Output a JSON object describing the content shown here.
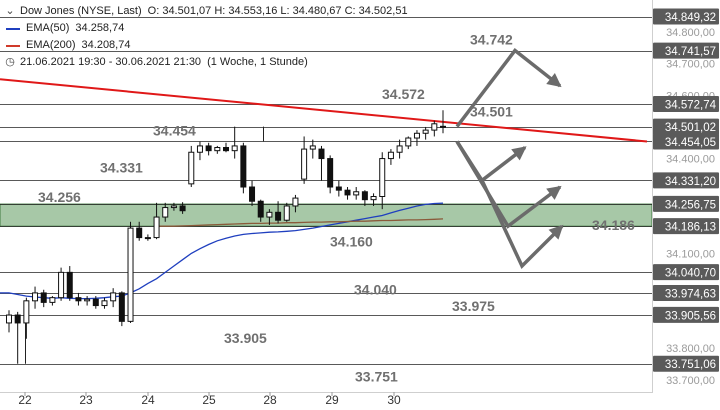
{
  "header": {
    "instrument": "Dow Jones (NYSE, Last)",
    "ohlc": "O: 34.501,07  H: 34.553,16  L: 34.480,67  C: 34.502,51",
    "ema50_label": "EMA(50)",
    "ema50_value": "34.258,74",
    "ema200_label": "EMA(200)",
    "ema200_value": "34.208,74",
    "range_text": "21.06.2021 19:30 - 30.06.2021 21:30",
    "interval_text": "(1 Woche, 1 Stunde)"
  },
  "colors": {
    "ema50": "#1f3fbf",
    "ema200": "#d03a2a",
    "trendline": "#e01818",
    "zone": "#5f9a5f",
    "level_line": "#222222",
    "arrow": "#6b6b6b",
    "label_box": "#5a5a5a",
    "up_candle": "#ffffff",
    "down_candle": "#111111"
  },
  "chart_data": {
    "type": "candlestick",
    "x_tick_labels": [
      "22",
      "23",
      "24",
      "25",
      "28",
      "29",
      "30"
    ],
    "y_tick_labels": [
      "33.700,00",
      "33.800,00",
      "34.100,00",
      "34.400,00",
      "34.600,00",
      "34.700,00",
      "34.800,00"
    ],
    "ylim": [
      33690,
      34870
    ],
    "level_lines": [
      {
        "value": 34849.32,
        "label": "34.849,32"
      },
      {
        "value": 34741.57,
        "label": "34.741,57"
      },
      {
        "value": 34572.74,
        "label": "34.572,74"
      },
      {
        "value": 34501.02,
        "label": "34.501,02"
      },
      {
        "value": 34454.05,
        "label": "34.454,05"
      },
      {
        "value": 34331.2,
        "label": "34.331,20"
      },
      {
        "value": 34256.75,
        "label": "34.256,75"
      },
      {
        "value": 34186.13,
        "label": "34.186,13"
      },
      {
        "value": 34040.7,
        "label": "34.040,70"
      },
      {
        "value": 33974.63,
        "label": "33.974,63"
      },
      {
        "value": 33905.56,
        "label": "33.905,56"
      },
      {
        "value": 33751.06,
        "label": "33.751,06"
      }
    ],
    "annotations": [
      {
        "text": "34.742",
        "value": 34742
      },
      {
        "text": "34.572",
        "value": 34572
      },
      {
        "text": "34.501",
        "value": 34501
      },
      {
        "text": "34.454",
        "value": 34454
      },
      {
        "text": "34.331",
        "value": 34331
      },
      {
        "text": "34.256",
        "value": 34256
      },
      {
        "text": "34.186",
        "value": 34186
      },
      {
        "text": "34.160",
        "value": 34160
      },
      {
        "text": "34.040",
        "value": 34040
      },
      {
        "text": "33.975",
        "value": 33975
      },
      {
        "text": "33.905",
        "value": 33905
      },
      {
        "text": "33.751",
        "value": 33751
      }
    ],
    "support_zone": {
      "from": 34186,
      "to": 34256
    },
    "trendline": {
      "start": 34651,
      "end": 34454
    },
    "scenario_arrows": [
      {
        "name": "breakout-to-34742",
        "points": [
          [
            0,
            34501
          ],
          [
            1,
            34742
          ],
          [
            2,
            34630
          ]
        ]
      },
      {
        "name": "pullback-to-34331",
        "points": [
          [
            0,
            34454
          ],
          [
            1,
            34331
          ],
          [
            2,
            34435
          ]
        ]
      },
      {
        "name": "pullback-to-zone",
        "points": [
          [
            0,
            34454
          ],
          [
            1,
            34186
          ],
          [
            2,
            34310
          ]
        ]
      },
      {
        "name": "drop-to-34040",
        "points": [
          [
            0,
            34331
          ],
          [
            1,
            34060
          ],
          [
            2,
            34186
          ]
        ]
      }
    ],
    "candles": [
      {
        "o": 33880,
        "h": 33920,
        "l": 33850,
        "c": 33905
      },
      {
        "o": 33905,
        "h": 33915,
        "l": 33751,
        "c": 33880
      },
      {
        "o": 33880,
        "h": 33960,
        "l": 33830,
        "c": 33950
      },
      {
        "o": 33950,
        "h": 33995,
        "l": 33925,
        "c": 33975
      },
      {
        "o": 33975,
        "h": 33985,
        "l": 33930,
        "c": 33945
      },
      {
        "o": 33945,
        "h": 33965,
        "l": 33935,
        "c": 33960
      },
      {
        "o": 33960,
        "h": 34055,
        "l": 33950,
        "c": 34040
      },
      {
        "o": 34040,
        "h": 34060,
        "l": 33950,
        "c": 33960
      },
      {
        "o": 33960,
        "h": 33975,
        "l": 33935,
        "c": 33950
      },
      {
        "o": 33950,
        "h": 33965,
        "l": 33935,
        "c": 33955
      },
      {
        "o": 33955,
        "h": 33965,
        "l": 33925,
        "c": 33935
      },
      {
        "o": 33935,
        "h": 33960,
        "l": 33925,
        "c": 33950
      },
      {
        "o": 33950,
        "h": 33990,
        "l": 33930,
        "c": 33975
      },
      {
        "o": 33975,
        "h": 33980,
        "l": 33870,
        "c": 33885
      },
      {
        "o": 33885,
        "h": 34200,
        "l": 33880,
        "c": 34180
      },
      {
        "o": 34180,
        "h": 34200,
        "l": 34140,
        "c": 34150
      },
      {
        "o": 34150,
        "h": 34160,
        "l": 34140,
        "c": 34150
      },
      {
        "o": 34150,
        "h": 34260,
        "l": 34145,
        "c": 34215
      },
      {
        "o": 34215,
        "h": 34260,
        "l": 34200,
        "c": 34245
      },
      {
        "o": 34245,
        "h": 34260,
        "l": 34235,
        "c": 34250
      },
      {
        "o": 34250,
        "h": 34262,
        "l": 34225,
        "c": 34235
      },
      {
        "o": 34320,
        "h": 34440,
        "l": 34310,
        "c": 34420
      },
      {
        "o": 34420,
        "h": 34454,
        "l": 34395,
        "c": 34440
      },
      {
        "o": 34440,
        "h": 34450,
        "l": 34410,
        "c": 34425
      },
      {
        "o": 34425,
        "h": 34440,
        "l": 34415,
        "c": 34435
      },
      {
        "o": 34435,
        "h": 34450,
        "l": 34420,
        "c": 34425
      },
      {
        "o": 34425,
        "h": 34501,
        "l": 34400,
        "c": 34440
      },
      {
        "o": 34440,
        "h": 34450,
        "l": 34290,
        "c": 34310
      },
      {
        "o": 34310,
        "h": 34330,
        "l": 34250,
        "c": 34265
      },
      {
        "o": 34265,
        "h": 34270,
        "l": 34200,
        "c": 34215
      },
      {
        "o": 34215,
        "h": 34240,
        "l": 34190,
        "c": 34230
      },
      {
        "o": 34230,
        "h": 34265,
        "l": 34195,
        "c": 34205
      },
      {
        "o": 34205,
        "h": 34260,
        "l": 34200,
        "c": 34250
      },
      {
        "o": 34250,
        "h": 34285,
        "l": 34230,
        "c": 34275
      },
      {
        "o": 34335,
        "h": 34470,
        "l": 34320,
        "c": 34430
      },
      {
        "o": 34430,
        "h": 34460,
        "l": 34400,
        "c": 34440
      },
      {
        "o": 34430,
        "h": 34440,
        "l": 34330,
        "c": 34400
      },
      {
        "o": 34400,
        "h": 34410,
        "l": 34290,
        "c": 34310
      },
      {
        "o": 34310,
        "h": 34330,
        "l": 34280,
        "c": 34300
      },
      {
        "o": 34300,
        "h": 34310,
        "l": 34270,
        "c": 34285
      },
      {
        "o": 34285,
        "h": 34310,
        "l": 34270,
        "c": 34295
      },
      {
        "o": 34295,
        "h": 34300,
        "l": 34250,
        "c": 34270
      },
      {
        "o": 34270,
        "h": 34290,
        "l": 34250,
        "c": 34280
      },
      {
        "o": 34280,
        "h": 34420,
        "l": 34240,
        "c": 34400
      },
      {
        "o": 34400,
        "h": 34430,
        "l": 34380,
        "c": 34420
      },
      {
        "o": 34420,
        "h": 34460,
        "l": 34400,
        "c": 34440
      },
      {
        "o": 34440,
        "h": 34470,
        "l": 34430,
        "c": 34465
      },
      {
        "o": 34465,
        "h": 34490,
        "l": 34440,
        "c": 34480
      },
      {
        "o": 34480,
        "h": 34500,
        "l": 34460,
        "c": 34490
      },
      {
        "o": 34490,
        "h": 34520,
        "l": 34470,
        "c": 34510
      },
      {
        "o": 34501,
        "h": 34553,
        "l": 34480,
        "c": 34502
      }
    ],
    "ema50": [
      33975,
      33970,
      33965,
      33962,
      33960,
      33958,
      33960,
      33958,
      33957,
      33957,
      33958,
      33960,
      33963,
      33965,
      33975,
      33988,
      34005,
      34020,
      34040,
      34060,
      34080,
      34100,
      34115,
      34128,
      34140,
      34148,
      34155,
      34160,
      34163,
      34165,
      34167,
      34168,
      34170,
      34172,
      34176,
      34180,
      34185,
      34190,
      34195,
      34200,
      34205,
      34210,
      34215,
      34220,
      34228,
      34236,
      34243,
      34250,
      34255,
      34258,
      34259
    ],
    "ema200": [
      null,
      null,
      null,
      null,
      null,
      null,
      null,
      null,
      null,
      null,
      null,
      null,
      null,
      null,
      null,
      null,
      null,
      34186,
      34186,
      34186,
      34187,
      34188,
      34189,
      34190,
      34191,
      34192,
      34193,
      34194,
      34195,
      34195,
      34196,
      34196,
      34197,
      34197,
      34198,
      34199,
      34199,
      34200,
      34200,
      34201,
      34202,
      34202,
      34203,
      34204,
      34204,
      34205,
      34206,
      34206,
      34207,
      34208,
      34209
    ]
  }
}
